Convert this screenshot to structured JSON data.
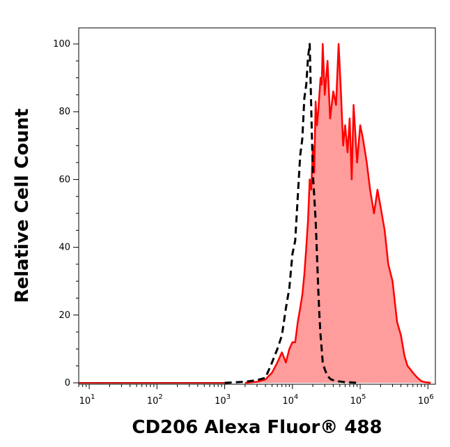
{
  "chart_data": {
    "type": "area",
    "title": "",
    "xlabel": "CD206 Alexa Fluor® 488",
    "ylabel": "Relative Cell Count",
    "x_scale": "log",
    "xlim": [
      7,
      1200000
    ],
    "ylim": [
      0,
      105
    ],
    "x_tick_labels": [
      {
        "value": 10,
        "base": "10",
        "exp": "1"
      },
      {
        "value": 100,
        "base": "10",
        "exp": "2"
      },
      {
        "value": 1000,
        "base": "10",
        "exp": "3"
      },
      {
        "value": 10000,
        "base": "10",
        "exp": "4"
      },
      {
        "value": 100000,
        "base": "10",
        "exp": "5"
      },
      {
        "value": 1000000,
        "base": "10",
        "exp": "6"
      }
    ],
    "y_ticks": [
      0,
      20,
      40,
      60,
      80,
      100
    ],
    "grid": false,
    "legend": "none",
    "series": [
      {
        "style": "dashed",
        "color": "#000000",
        "x": [
          1000,
          2000,
          3000,
          4000,
          5000,
          6000,
          7000,
          8000,
          9000,
          10000,
          11000,
          12000,
          13000,
          14000,
          15000,
          16000,
          17000,
          18000,
          19000,
          20000,
          21000,
          22000,
          23000,
          24000,
          25000,
          26000,
          27000,
          28000,
          30000,
          33000,
          37000,
          45000,
          60000,
          100000
        ],
        "y": [
          0,
          0.3,
          0.8,
          1.5,
          6,
          10,
          14,
          22,
          28,
          38,
          42,
          55,
          67,
          72,
          84,
          88,
          96,
          100,
          80,
          62,
          55,
          48,
          38,
          28,
          20,
          14,
          10,
          6,
          4,
          2,
          1,
          0.5,
          0.2,
          0
        ]
      },
      {
        "style": "filled",
        "color": "#ff0000",
        "fill": "#ff9c9c",
        "x": [
          2000,
          3000,
          4000,
          5000,
          6000,
          7000,
          8000,
          9000,
          10000,
          11000,
          12000,
          13000,
          14000,
          15000,
          16000,
          17000,
          18000,
          19000,
          20000,
          21000,
          22000,
          23000,
          24000,
          25000,
          26000,
          27000,
          28000,
          30000,
          33000,
          36000,
          40000,
          44000,
          48000,
          52000,
          56000,
          60000,
          65000,
          70000,
          75000,
          80000,
          90000,
          100000,
          110000,
          125000,
          140000,
          160000,
          180000,
          200000,
          230000,
          260000,
          300000,
          350000,
          400000,
          450000,
          500000,
          550000,
          600000,
          700000,
          800000,
          900000,
          1000000,
          1100000
        ],
        "y": [
          0,
          0.3,
          1,
          3,
          6,
          9,
          6,
          10,
          12,
          12,
          18,
          22,
          26,
          32,
          40,
          48,
          60,
          57,
          70,
          62,
          83,
          76,
          80,
          85,
          90,
          88,
          100,
          85,
          95,
          78,
          86,
          82,
          100,
          86,
          70,
          76,
          68,
          78,
          60,
          82,
          65,
          76,
          72,
          65,
          57,
          50,
          57,
          52,
          45,
          35,
          30,
          18,
          14,
          8,
          5,
          4,
          3,
          1.5,
          0.5,
          0.2,
          0.1,
          0
        ]
      }
    ]
  }
}
